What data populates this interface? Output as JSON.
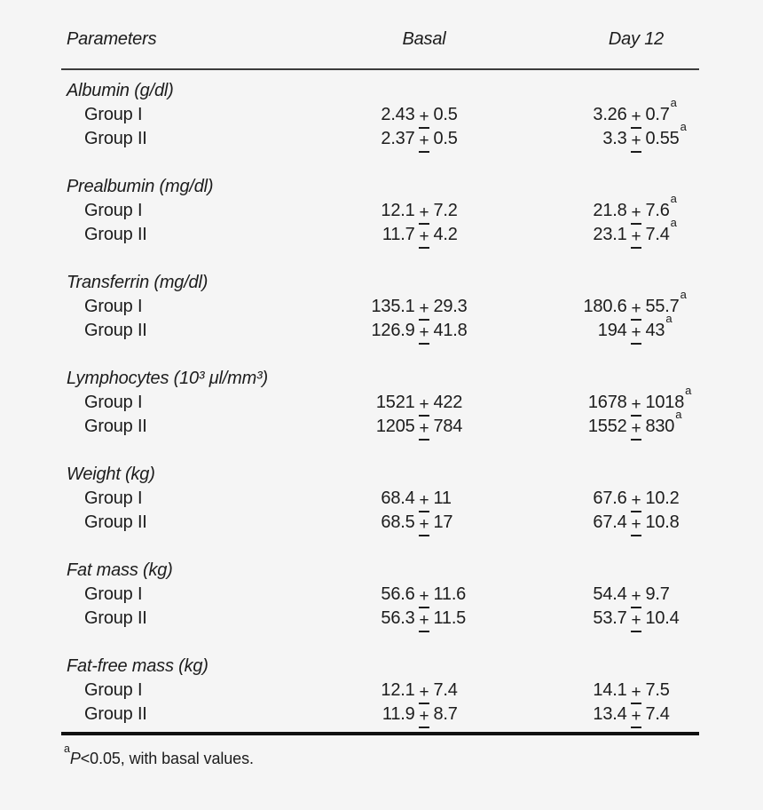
{
  "page": {
    "background_color": "#f5f5f5",
    "text_color": "#1c1c1c",
    "rule_color": "#3c3c3c",
    "heavy_rule_color": "#111111"
  },
  "table": {
    "columns": {
      "parameters": "Parameters",
      "basal": "Basal",
      "day12": "Day 12"
    },
    "plus_minus": "+",
    "sig_marker": "a",
    "sections": [
      {
        "parameter": "Albumin (g/dl)",
        "rows": [
          {
            "group": "Group I",
            "basal": {
              "mean": "2.43",
              "sd": "0.5",
              "sig": false
            },
            "day12": {
              "mean": "3.26",
              "sd": "0.7",
              "sig": true
            }
          },
          {
            "group": "Group II",
            "basal": {
              "mean": "2.37",
              "sd": "0.5",
              "sig": false
            },
            "day12": {
              "mean": "3.3",
              "sd": "0.55",
              "sig": true
            }
          }
        ]
      },
      {
        "parameter": "Prealbumin (mg/dl)",
        "rows": [
          {
            "group": "Group I",
            "basal": {
              "mean": "12.1",
              "sd": "7.2",
              "sig": false
            },
            "day12": {
              "mean": "21.8",
              "sd": "7.6",
              "sig": true
            }
          },
          {
            "group": "Group II",
            "basal": {
              "mean": "11.7",
              "sd": "4.2",
              "sig": false
            },
            "day12": {
              "mean": "23.1",
              "sd": "7.4",
              "sig": true
            }
          }
        ]
      },
      {
        "parameter": "Transferrin (mg/dl)",
        "rows": [
          {
            "group": "Group I",
            "basal": {
              "mean": "135.1",
              "sd": "29.3",
              "sig": false
            },
            "day12": {
              "mean": "180.6",
              "sd": "55.7",
              "sig": true
            }
          },
          {
            "group": "Group II",
            "basal": {
              "mean": "126.9",
              "sd": "41.8",
              "sig": false
            },
            "day12": {
              "mean": "194",
              "sd": "43",
              "sig": true
            }
          }
        ]
      },
      {
        "parameter": "Lymphocytes (10³ μl/mm³)",
        "rows": [
          {
            "group": "Group I",
            "basal": {
              "mean": "1521",
              "sd": "422",
              "sig": false
            },
            "day12": {
              "mean": "1678",
              "sd": "1018",
              "sig": true
            }
          },
          {
            "group": "Group II",
            "basal": {
              "mean": "1205",
              "sd": "784",
              "sig": false
            },
            "day12": {
              "mean": "1552",
              "sd": "830",
              "sig": true
            }
          }
        ]
      },
      {
        "parameter": "Weight (kg)",
        "rows": [
          {
            "group": "Group I",
            "basal": {
              "mean": "68.4",
              "sd": "11",
              "sig": false
            },
            "day12": {
              "mean": "67.6",
              "sd": "10.2",
              "sig": false
            }
          },
          {
            "group": "Group II",
            "basal": {
              "mean": "68.5",
              "sd": "17",
              "sig": false
            },
            "day12": {
              "mean": "67.4",
              "sd": "10.8",
              "sig": false
            }
          }
        ]
      },
      {
        "parameter": "Fat mass (kg)",
        "rows": [
          {
            "group": "Group I",
            "basal": {
              "mean": "56.6",
              "sd": "11.6",
              "sig": false
            },
            "day12": {
              "mean": "54.4",
              "sd": "9.7",
              "sig": false
            }
          },
          {
            "group": "Group II",
            "basal": {
              "mean": "56.3",
              "sd": "11.5",
              "sig": false
            },
            "day12": {
              "mean": "53.7",
              "sd": "10.4",
              "sig": false
            }
          }
        ]
      },
      {
        "parameter": "Fat-free mass (kg)",
        "rows": [
          {
            "group": "Group I",
            "basal": {
              "mean": "12.1",
              "sd": "7.4",
              "sig": false
            },
            "day12": {
              "mean": "14.1",
              "sd": "7.5",
              "sig": false
            }
          },
          {
            "group": "Group II",
            "basal": {
              "mean": "11.9",
              "sd": "8.7",
              "sig": false
            },
            "day12": {
              "mean": "13.4",
              "sd": "7.4",
              "sig": false
            }
          }
        ]
      }
    ],
    "footnote": {
      "marker": "a",
      "p": "P",
      "text": "<0.05, with basal values."
    }
  },
  "chart_data": {
    "type": "table",
    "title": "",
    "columns": [
      "Parameters",
      "Basal",
      "Day 12"
    ],
    "rows": [
      [
        "Albumin (g/dl) — Group I",
        "2.43 ± 0.5",
        "3.26 ± 0.7 (a)"
      ],
      [
        "Albumin (g/dl) — Group II",
        "2.37 ± 0.5",
        "3.3 ± 0.55 (a)"
      ],
      [
        "Prealbumin (mg/dl) — Group I",
        "12.1 ± 7.2",
        "21.8 ± 7.6 (a)"
      ],
      [
        "Prealbumin (mg/dl) — Group II",
        "11.7 ± 4.2",
        "23.1 ± 7.4 (a)"
      ],
      [
        "Transferrin (mg/dl) — Group I",
        "135.1 ± 29.3",
        "180.6 ± 55.7 (a)"
      ],
      [
        "Transferrin (mg/dl) — Group II",
        "126.9 ± 41.8",
        "194 ± 43 (a)"
      ],
      [
        "Lymphocytes (10³ μl/mm³) — Group I",
        "1521 ± 422",
        "1678 ± 1018 (a)"
      ],
      [
        "Lymphocytes (10³ μl/mm³) — Group II",
        "1205 ± 784",
        "1552 ± 830 (a)"
      ],
      [
        "Weight (kg) — Group I",
        "68.4 ± 11",
        "67.6 ± 10.2"
      ],
      [
        "Weight (kg) — Group II",
        "68.5 ± 17",
        "67.4 ± 10.8"
      ],
      [
        "Fat mass (kg) — Group I",
        "56.6 ± 11.6",
        "54.4 ± 9.7"
      ],
      [
        "Fat mass (kg) — Group II",
        "56.3 ± 11.5",
        "53.7 ± 10.4"
      ],
      [
        "Fat-free mass (kg) — Group I",
        "12.1 ± 7.4",
        "14.1 ± 7.5"
      ],
      [
        "Fat-free mass (kg) — Group II",
        "11.9 ± 8.7",
        "13.4 ± 7.4"
      ]
    ],
    "footnote": "aP<0.05, with basal values."
  }
}
